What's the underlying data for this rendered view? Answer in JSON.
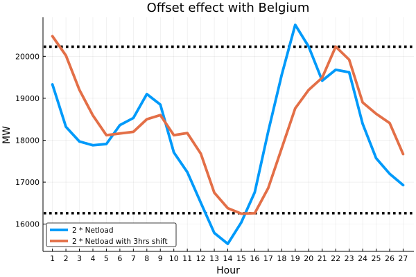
{
  "chart_data": {
    "type": "line",
    "title": "Offset effect with Belgium",
    "xlabel": "Hour",
    "ylabel": "MW",
    "x": [
      1,
      2,
      3,
      4,
      5,
      6,
      7,
      8,
      9,
      10,
      11,
      12,
      13,
      14,
      15,
      16,
      17,
      18,
      19,
      20,
      21,
      22,
      23,
      24,
      25,
      26,
      27
    ],
    "xlim": [
      0.3,
      27.8
    ],
    "ylim": [
      15350,
      20930
    ],
    "yticks": [
      16000,
      17000,
      18000,
      19000,
      20000
    ],
    "grid": true,
    "legend_position": "bottom-left",
    "series": [
      {
        "name": "2 * Netload",
        "color": "#009AFA",
        "values": [
          19330,
          18320,
          17970,
          17880,
          17910,
          18360,
          18530,
          19100,
          18850,
          17710,
          17240,
          16510,
          15790,
          15530,
          16040,
          16760,
          18210,
          19560,
          20750,
          20230,
          19420,
          19680,
          19620,
          18390,
          17570,
          17200,
          16930
        ]
      },
      {
        "name": "2 * Netload with 3hrs shift",
        "color": "#E36F47",
        "values": [
          20480,
          20020,
          19200,
          18590,
          18120,
          18160,
          18200,
          18500,
          18600,
          18120,
          18170,
          17680,
          16750,
          16380,
          16250,
          16260,
          16860,
          17810,
          18760,
          19200,
          19490,
          20230,
          19920,
          18900,
          18630,
          18410,
          17670
        ]
      }
    ],
    "reference_lines": [
      {
        "style": "dotted",
        "color": "#000000",
        "value": 20230
      },
      {
        "style": "dotted",
        "color": "#000000",
        "value": 16260
      }
    ]
  }
}
